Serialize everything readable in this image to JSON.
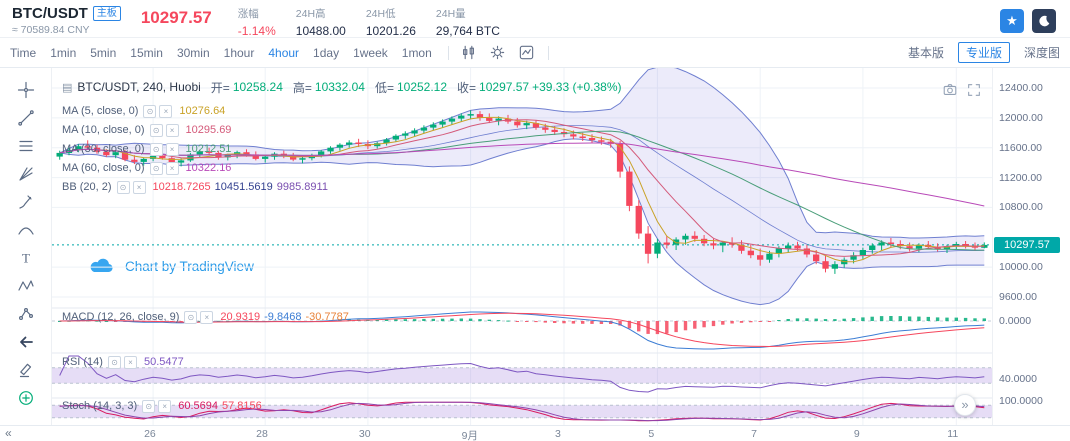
{
  "header": {
    "pair": "BTC/USDT",
    "board_badge": "主板",
    "approx_cny": "≈ 70589.84 CNY",
    "last_price": "10297.57",
    "stats": [
      {
        "label": "涨幅",
        "value": "-1.14%"
      },
      {
        "label": "24H高",
        "value": "10488.00"
      },
      {
        "label": "24H低",
        "value": "10201.26"
      },
      {
        "label": "24H量",
        "value": "29,764 BTC"
      }
    ]
  },
  "toolbar": {
    "intervals": [
      "Time",
      "1min",
      "5min",
      "15min",
      "30min",
      "1hour",
      "4hour",
      "1day",
      "1week",
      "1mon"
    ],
    "active_interval": "4hour",
    "view_buttons": [
      "基本版",
      "专业版",
      "深度图"
    ],
    "active_view": "专业版"
  },
  "legend": {
    "title": "BTC/USDT, 240, Huobi",
    "open_label": "开=",
    "open": "10258.24",
    "high_label": "高=",
    "high": "10332.04",
    "low_label": "低=",
    "low": "10252.12",
    "close_label": "收=",
    "close": "10297.57",
    "change": "+39.33 (+0.38%)",
    "ma5": {
      "label": "MA (5, close, 0)",
      "value": "10276.64"
    },
    "ma10": {
      "label": "MA (10, close, 0)",
      "value": "10295.69"
    },
    "ma30": {
      "label": "MA (30, close, 0)",
      "value": "10212.51"
    },
    "ma60": {
      "label": "MA (60, close, 0)",
      "value": "10322.16"
    },
    "bb": {
      "label": "BB (20, 2)",
      "v1": "10218.7265",
      "v2": "10451.5619",
      "v3": "9985.8911"
    },
    "macd": {
      "label": "MACD (12, 26, close, 9)",
      "v1": "20.9319",
      "v2": "-9.8468",
      "v3": "-30.7787"
    },
    "rsi": {
      "label": "RSI (14)",
      "value": "50.5477"
    },
    "stoch": {
      "label": "Stoch (14, 3, 3)",
      "v1": "60.5694",
      "v2": "57.8156"
    }
  },
  "watermark": "Chart by TradingView",
  "icons": {
    "star": "★",
    "prev": "«",
    "next": "»",
    "settings": "⊙",
    "close": "×",
    "candle_style": "▤"
  },
  "tools": [
    "crosshair",
    "trend-line",
    "fib-retracement",
    "gann-fan",
    "brush",
    "curve",
    "text",
    "xabcd-pattern",
    "measure",
    "back-arrow",
    "eraser",
    "add-indicator"
  ],
  "axis": {
    "price_labels": [
      12400,
      12000,
      11600,
      11200,
      10800,
      10000,
      9600
    ],
    "current_price": 10297.57,
    "macd_zero_label": "0.0000",
    "rsi_level_label": "40.0000",
    "stoch_level_label": "100.0000",
    "time_ticks": [
      {
        "label": "26",
        "i": 10
      },
      {
        "label": "28",
        "i": 22
      },
      {
        "label": "30",
        "i": 33
      },
      {
        "label": "9月",
        "i": 44
      },
      {
        "label": "3",
        "i": 54
      },
      {
        "label": "5",
        "i": 64
      },
      {
        "label": "7",
        "i": 75
      },
      {
        "label": "9",
        "i": 86
      },
      {
        "label": "11",
        "i": 96
      }
    ]
  },
  "colors": {
    "up": "#03ad79",
    "down": "#f5475d",
    "accent": "#2b85e4",
    "price_tag_bg": "#00a8a8",
    "ma5": "#c9a227",
    "ma10": "#d45a7a",
    "ma30": "#4a9e79",
    "ma60": "#b84ab8",
    "bb_line": "#6f7fd0",
    "bb_fill": "rgba(120,110,220,0.14)",
    "macd": "#3c7dd4",
    "macd_signal": "#f5475d",
    "rsi": "#7e57c2",
    "stoch_k": "#d81b60",
    "stoch_d": "#8e44ad",
    "band_fill": "rgba(155,120,220,0.25)",
    "grid": "#eef2f7"
  },
  "chart_data": {
    "type": "candlestick",
    "symbol": "BTC/USDT",
    "interval": "240",
    "exchange": "Huobi",
    "price_range": [
      9600,
      12400
    ],
    "ohlc_last": {
      "open": 10258.24,
      "high": 10332.04,
      "low": 10252.12,
      "close": 10297.57
    },
    "indicators": [
      "MA5",
      "MA10",
      "MA30",
      "MA60",
      "BB(20,2)",
      "MACD(12,26,close,9)",
      "RSI(14)",
      "Stoch(14,3,3)"
    ],
    "candles": [
      [
        11480,
        11560,
        11440,
        11530
      ],
      [
        11530,
        11600,
        11500,
        11570
      ],
      [
        11570,
        11650,
        11540,
        11620
      ],
      [
        11620,
        11700,
        11580,
        11600
      ],
      [
        11600,
        11640,
        11520,
        11545
      ],
      [
        11545,
        11580,
        11480,
        11500
      ],
      [
        11500,
        11560,
        11460,
        11540
      ],
      [
        11540,
        11570,
        11420,
        11440
      ],
      [
        11440,
        11500,
        11380,
        11410
      ],
      [
        11410,
        11470,
        11360,
        11450
      ],
      [
        11450,
        11520,
        11420,
        11490
      ],
      [
        11490,
        11540,
        11440,
        11460
      ],
      [
        11460,
        11500,
        11380,
        11400
      ],
      [
        11400,
        11460,
        11350,
        11430
      ],
      [
        11430,
        11530,
        11410,
        11510
      ],
      [
        11510,
        11570,
        11470,
        11550
      ],
      [
        11550,
        11600,
        11500,
        11530
      ],
      [
        11530,
        11560,
        11440,
        11470
      ],
      [
        11470,
        11520,
        11430,
        11500
      ],
      [
        11500,
        11560,
        11460,
        11540
      ],
      [
        11540,
        11580,
        11480,
        11510
      ],
      [
        11510,
        11550,
        11430,
        11450
      ],
      [
        11450,
        11500,
        11400,
        11480
      ],
      [
        11480,
        11540,
        11440,
        11520
      ],
      [
        11520,
        11560,
        11460,
        11490
      ],
      [
        11490,
        11530,
        11420,
        11440
      ],
      [
        11440,
        11490,
        11390,
        11460
      ],
      [
        11460,
        11520,
        11430,
        11500
      ],
      [
        11500,
        11570,
        11470,
        11550
      ],
      [
        11550,
        11620,
        11520,
        11600
      ],
      [
        11600,
        11660,
        11560,
        11640
      ],
      [
        11640,
        11700,
        11600,
        11670
      ],
      [
        11670,
        11720,
        11610,
        11650
      ],
      [
        11650,
        11700,
        11580,
        11620
      ],
      [
        11620,
        11680,
        11590,
        11660
      ],
      [
        11660,
        11730,
        11630,
        11710
      ],
      [
        11710,
        11780,
        11680,
        11760
      ],
      [
        11760,
        11820,
        11720,
        11790
      ],
      [
        11790,
        11860,
        11750,
        11830
      ],
      [
        11830,
        11900,
        11790,
        11870
      ],
      [
        11870,
        11940,
        11830,
        11910
      ],
      [
        11910,
        11980,
        11870,
        11950
      ],
      [
        11950,
        12020,
        11910,
        11990
      ],
      [
        11990,
        12060,
        11950,
        12030
      ],
      [
        12030,
        12100,
        11980,
        12050
      ],
      [
        12050,
        12090,
        11960,
        12000
      ],
      [
        12000,
        12060,
        11930,
        11960
      ],
      [
        11960,
        12020,
        11900,
        11990
      ],
      [
        11990,
        12040,
        11920,
        11950
      ],
      [
        11950,
        12000,
        11870,
        11900
      ],
      [
        11900,
        11960,
        11850,
        11930
      ],
      [
        11930,
        11970,
        11840,
        11870
      ],
      [
        11870,
        11920,
        11800,
        11840
      ],
      [
        11840,
        11890,
        11770,
        11810
      ],
      [
        11810,
        11860,
        11740,
        11780
      ],
      [
        11780,
        11830,
        11710,
        11750
      ],
      [
        11750,
        11800,
        11690,
        11730
      ],
      [
        11730,
        11780,
        11660,
        11700
      ],
      [
        11700,
        11750,
        11640,
        11680
      ],
      [
        11680,
        11720,
        11600,
        11650
      ],
      [
        11650,
        11690,
        11200,
        11280
      ],
      [
        11280,
        11350,
        10750,
        10820
      ],
      [
        10820,
        10900,
        10380,
        10450
      ],
      [
        10450,
        10550,
        10050,
        10180
      ],
      [
        10180,
        10380,
        10120,
        10330
      ],
      [
        10330,
        10420,
        10250,
        10300
      ],
      [
        10300,
        10400,
        10230,
        10370
      ],
      [
        10370,
        10450,
        10300,
        10420
      ],
      [
        10420,
        10480,
        10340,
        10380
      ],
      [
        10380,
        10430,
        10280,
        10320
      ],
      [
        10320,
        10380,
        10240,
        10290
      ],
      [
        10290,
        10350,
        10200,
        10330
      ],
      [
        10330,
        10400,
        10260,
        10300
      ],
      [
        10300,
        10360,
        10180,
        10220
      ],
      [
        10220,
        10300,
        10120,
        10160
      ],
      [
        10160,
        10250,
        10020,
        10100
      ],
      [
        10100,
        10220,
        10060,
        10180
      ],
      [
        10180,
        10280,
        10130,
        10250
      ],
      [
        10250,
        10330,
        10190,
        10290
      ],
      [
        10290,
        10340,
        10210,
        10250
      ],
      [
        10250,
        10300,
        10130,
        10170
      ],
      [
        10170,
        10230,
        10040,
        10080
      ],
      [
        10080,
        10150,
        9930,
        9980
      ],
      [
        9980,
        10080,
        9910,
        10040
      ],
      [
        10040,
        10130,
        9990,
        10100
      ],
      [
        10100,
        10200,
        10050,
        10160
      ],
      [
        10160,
        10260,
        10110,
        10230
      ],
      [
        10230,
        10320,
        10180,
        10290
      ],
      [
        10290,
        10360,
        10230,
        10330
      ],
      [
        10330,
        10390,
        10270,
        10310
      ],
      [
        10310,
        10360,
        10240,
        10280
      ],
      [
        10280,
        10330,
        10210,
        10250
      ],
      [
        10250,
        10320,
        10200,
        10300
      ],
      [
        10300,
        10350,
        10240,
        10270
      ],
      [
        10270,
        10320,
        10210,
        10240
      ],
      [
        10240,
        10300,
        10190,
        10280
      ],
      [
        10280,
        10340,
        10230,
        10310
      ],
      [
        10310,
        10350,
        10250,
        10290
      ],
      [
        10290,
        10330,
        10220,
        10260
      ],
      [
        10258.24,
        10332.04,
        10252.12,
        10297.57
      ]
    ]
  }
}
